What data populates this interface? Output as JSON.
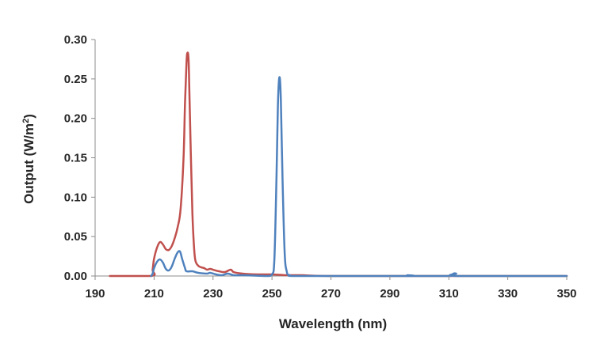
{
  "chart_data": {
    "type": "line",
    "title": "",
    "xlabel": "Wavelength (nm)",
    "ylabel_main": "Output (W/m",
    "ylabel_sup": "2",
    "ylabel_close": ")",
    "xlim": [
      190,
      350
    ],
    "ylim": [
      0,
      0.3
    ],
    "x_ticks": [
      190,
      210,
      230,
      250,
      270,
      290,
      310,
      330,
      350
    ],
    "y_ticks": [
      0.0,
      0.05,
      0.1,
      0.15,
      0.2,
      0.25,
      0.3
    ],
    "x_tick_labels": [
      "190",
      "210",
      "230",
      "250",
      "270",
      "290",
      "310",
      "330",
      "350"
    ],
    "y_tick_labels": [
      "0.00",
      "0.05",
      "0.10",
      "0.15",
      "0.20",
      "0.25",
      "0.30"
    ],
    "grid": false,
    "legend": "none",
    "series": [
      {
        "color": "#c0504d",
        "points": [
          [
            195,
            0.0
          ],
          [
            209,
            0.0
          ],
          [
            209.5,
            0.008
          ],
          [
            210,
            0.022
          ],
          [
            211,
            0.036
          ],
          [
            212,
            0.043
          ],
          [
            213,
            0.04
          ],
          [
            214,
            0.034
          ],
          [
            215,
            0.033
          ],
          [
            216,
            0.038
          ],
          [
            217,
            0.048
          ],
          [
            218,
            0.062
          ],
          [
            219,
            0.085
          ],
          [
            220,
            0.15
          ],
          [
            220.5,
            0.22
          ],
          [
            221,
            0.27
          ],
          [
            221.3,
            0.283
          ],
          [
            221.7,
            0.275
          ],
          [
            222,
            0.23
          ],
          [
            222.5,
            0.15
          ],
          [
            223,
            0.08
          ],
          [
            223.5,
            0.04
          ],
          [
            224,
            0.02
          ],
          [
            225,
            0.013
          ],
          [
            226,
            0.011
          ],
          [
            227,
            0.01
          ],
          [
            228,
            0.008
          ],
          [
            229,
            0.009
          ],
          [
            230,
            0.008
          ],
          [
            232,
            0.006
          ],
          [
            234,
            0.005
          ],
          [
            236,
            0.008
          ],
          [
            237,
            0.005
          ],
          [
            240,
            0.003
          ],
          [
            245,
            0.002
          ],
          [
            250,
            0.002
          ],
          [
            255,
            0.001
          ],
          [
            260,
            0.001
          ],
          [
            270,
            0.0
          ],
          [
            300,
            0.0
          ],
          [
            330,
            0.0
          ],
          [
            350,
            0.0
          ]
        ]
      },
      {
        "color": "#4f81bd",
        "points": [
          [
            209,
            0.0
          ],
          [
            209.5,
            0.003
          ],
          [
            210,
            0.01
          ],
          [
            211,
            0.018
          ],
          [
            212,
            0.021
          ],
          [
            213,
            0.017
          ],
          [
            214,
            0.009
          ],
          [
            215,
            0.007
          ],
          [
            216,
            0.012
          ],
          [
            217,
            0.022
          ],
          [
            218,
            0.03
          ],
          [
            218.8,
            0.031
          ],
          [
            219.5,
            0.022
          ],
          [
            220.5,
            0.01
          ],
          [
            221,
            0.006
          ],
          [
            223,
            0.006
          ],
          [
            225,
            0.004
          ],
          [
            228,
            0.003
          ],
          [
            229,
            0.004
          ],
          [
            231,
            0.002
          ],
          [
            233,
            0.001
          ],
          [
            235,
            0.003
          ],
          [
            237,
            0.001
          ],
          [
            240,
            0.001
          ],
          [
            248,
            0.0
          ],
          [
            250,
            0.002
          ],
          [
            250.8,
            0.02
          ],
          [
            251.5,
            0.12
          ],
          [
            252,
            0.215
          ],
          [
            252.5,
            0.252
          ],
          [
            253,
            0.225
          ],
          [
            253.6,
            0.12
          ],
          [
            254.3,
            0.03
          ],
          [
            255,
            0.006
          ],
          [
            256,
            0.001
          ],
          [
            260,
            0.0
          ],
          [
            295,
            0.0
          ],
          [
            296,
            0.001
          ],
          [
            297,
            0.0
          ],
          [
            310,
            0.0
          ],
          [
            311.5,
            0.003
          ],
          [
            312.5,
            0.003
          ],
          [
            313.5,
            0.0
          ],
          [
            350,
            0.0
          ]
        ]
      }
    ]
  }
}
